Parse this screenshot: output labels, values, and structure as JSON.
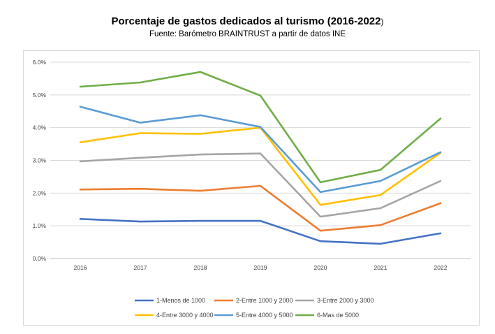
{
  "chart_data": {
    "type": "line",
    "title": "Porcentaje de gastos dedicados al turismo (2016-2022",
    "title_suffix": ")",
    "subtitle": "Fuente: Barómetro BRAINTRUST a partir de datos INE",
    "x": [
      "2016",
      "2017",
      "2018",
      "2019",
      "2020",
      "2021",
      "2022"
    ],
    "y_ticks": [
      "0.0%",
      "1.0%",
      "2.0%",
      "3.0%",
      "4.0%",
      "5.0%",
      "6.0%"
    ],
    "ylim": [
      0,
      6
    ],
    "grid": true,
    "legend_position": "bottom",
    "series": [
      {
        "name": "1-Menos de 1000",
        "color": "#4472C4",
        "values": [
          1.21,
          1.13,
          1.15,
          1.15,
          0.53,
          0.45,
          0.77
        ]
      },
      {
        "name": "2-Entre 1000 y 2000",
        "color": "#ED7D31",
        "values": [
          2.11,
          2.13,
          2.07,
          2.22,
          0.85,
          1.02,
          1.69
        ]
      },
      {
        "name": "3-Entre 2000 y 3000",
        "color": "#A5A5A5",
        "values": [
          2.97,
          3.08,
          3.18,
          3.21,
          1.28,
          1.54,
          2.37
        ]
      },
      {
        "name": "4-Entre 3000 y 4000",
        "color": "#FFC000",
        "values": [
          3.55,
          3.83,
          3.81,
          4.0,
          1.64,
          1.94,
          3.23
        ]
      },
      {
        "name": "5-Entre 4000 y 5000",
        "color": "#5B9BD5",
        "values": [
          4.64,
          4.15,
          4.38,
          4.02,
          2.03,
          2.37,
          3.25
        ]
      },
      {
        "name": "6-Mas de 5000",
        "color": "#70AD47",
        "values": [
          5.25,
          5.38,
          5.7,
          4.98,
          2.33,
          2.71,
          4.28
        ]
      }
    ]
  }
}
